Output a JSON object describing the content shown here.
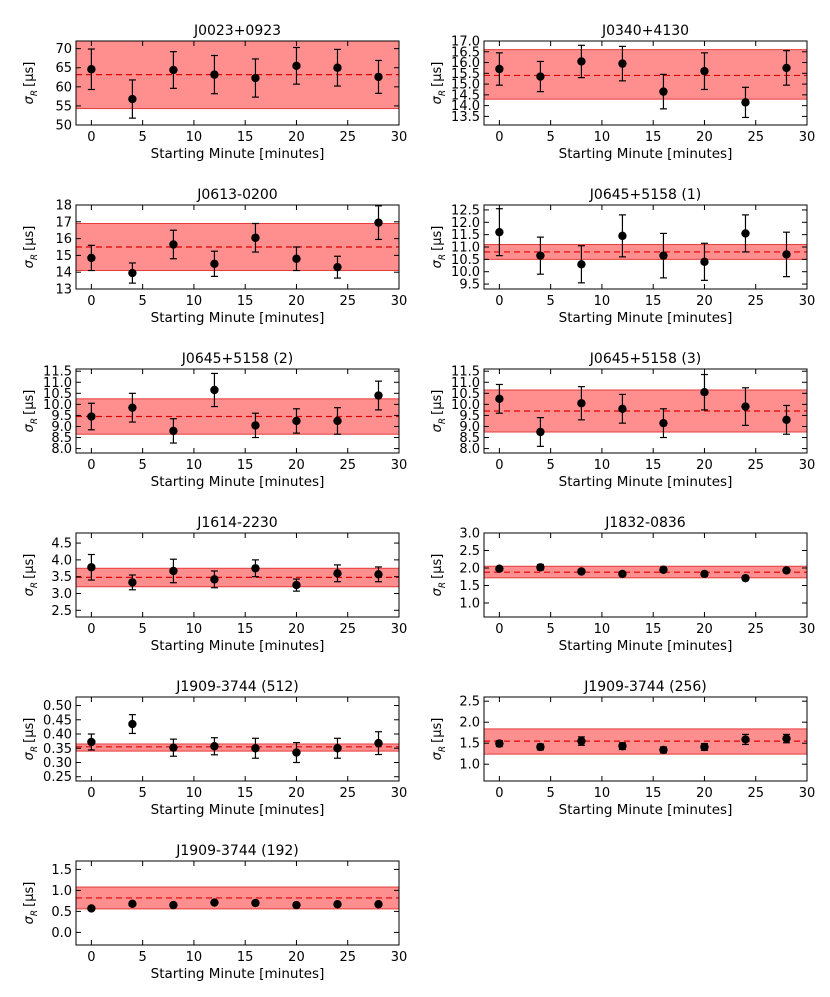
{
  "figure": {
    "xlabel": "Starting Minute [minutes]",
    "ylabel_symbol": "σ",
    "ylabel_subscript": "R",
    "ylabel_unit": "[μs]",
    "colors": {
      "band": "#ff7b7b",
      "band_edge": "#e53b3b",
      "mean_line": "#e00000",
      "points": "#000000",
      "axes": "#000000"
    }
  },
  "chart_data": [
    {
      "type": "scatter",
      "title": "J0023+0923",
      "xlim": [
        -1.5,
        30
      ],
      "ylim": [
        50,
        72
      ],
      "xticks": [
        0,
        5,
        10,
        15,
        20,
        25,
        30
      ],
      "yticks": [
        50,
        55,
        60,
        65,
        70
      ],
      "x": [
        0,
        4,
        8,
        12,
        16,
        20,
        24,
        28
      ],
      "y": [
        64.6,
        56.8,
        64.4,
        63.2,
        62.3,
        65.5,
        65.0,
        62.6
      ],
      "yerr": [
        5.3,
        5.0,
        4.8,
        5.0,
        5.0,
        4.8,
        4.8,
        4.3
      ],
      "mean": 63.2,
      "band": [
        54.3,
        72.0
      ]
    },
    {
      "type": "scatter",
      "title": "J0340+4130",
      "xlim": [
        -1.5,
        30
      ],
      "ylim": [
        13.1,
        17.0
      ],
      "xticks": [
        0,
        5,
        10,
        15,
        20,
        25,
        30
      ],
      "yticks": [
        13.5,
        14.0,
        14.5,
        15.0,
        15.5,
        16.0,
        16.5,
        17.0
      ],
      "ytick_labels": [
        "13.5",
        "14.0",
        "14.5",
        "15.0",
        "15.5",
        "16.0",
        "16.5",
        "17.0"
      ],
      "x": [
        0,
        4,
        8,
        12,
        16,
        20,
        24,
        28
      ],
      "y": [
        15.7,
        15.35,
        16.05,
        15.95,
        14.65,
        15.6,
        14.15,
        15.75
      ],
      "yerr": [
        0.75,
        0.7,
        0.75,
        0.8,
        0.8,
        0.85,
        0.7,
        0.8
      ],
      "mean": 15.4,
      "band": [
        14.3,
        16.6
      ]
    },
    {
      "type": "scatter",
      "title": "J0613-0200",
      "xlim": [
        -1.5,
        30
      ],
      "ylim": [
        13,
        18
      ],
      "xticks": [
        0,
        5,
        10,
        15,
        20,
        25,
        30
      ],
      "yticks": [
        13,
        14,
        15,
        16,
        17,
        18
      ],
      "x": [
        0,
        4,
        8,
        12,
        16,
        20,
        24,
        28
      ],
      "y": [
        14.85,
        13.95,
        15.65,
        14.5,
        16.05,
        14.8,
        14.3,
        16.95
      ],
      "yerr": [
        0.75,
        0.6,
        0.85,
        0.75,
        0.85,
        0.7,
        0.65,
        1.0
      ],
      "mean": 15.5,
      "band": [
        14.1,
        16.9
      ]
    },
    {
      "type": "scatter",
      "title": "J0645+5158 (1)",
      "xlim": [
        -1.5,
        30
      ],
      "ylim": [
        9.3,
        12.7
      ],
      "xticks": [
        0,
        5,
        10,
        15,
        20,
        25,
        30
      ],
      "yticks": [
        9.5,
        10.0,
        10.5,
        11.0,
        11.5,
        12.0,
        12.5
      ],
      "ytick_labels": [
        "9.5",
        "10.0",
        "10.5",
        "11.0",
        "11.5",
        "12.0",
        "12.5"
      ],
      "x": [
        0,
        4,
        8,
        12,
        16,
        20,
        24,
        28
      ],
      "y": [
        11.6,
        10.65,
        10.3,
        11.45,
        10.65,
        10.4,
        11.55,
        10.7
      ],
      "yerr": [
        0.95,
        0.75,
        0.75,
        0.85,
        0.9,
        0.75,
        0.75,
        0.9
      ],
      "mean": 10.8,
      "band": [
        10.5,
        11.1
      ]
    },
    {
      "type": "scatter",
      "title": "J0645+5158 (2)",
      "xlim": [
        -1.5,
        30
      ],
      "ylim": [
        7.8,
        11.6
      ],
      "xticks": [
        0,
        5,
        10,
        15,
        20,
        25,
        30
      ],
      "yticks": [
        8.0,
        8.5,
        9.0,
        9.5,
        10.0,
        10.5,
        11.0,
        11.5
      ],
      "ytick_labels": [
        "8.0",
        "8.5",
        "9.0",
        "9.5",
        "10.0",
        "10.5",
        "11.0",
        "11.5"
      ],
      "x": [
        0,
        4,
        8,
        12,
        16,
        20,
        24,
        28
      ],
      "y": [
        9.45,
        9.85,
        8.8,
        10.65,
        9.05,
        9.25,
        9.25,
        10.4
      ],
      "yerr": [
        0.6,
        0.65,
        0.55,
        0.75,
        0.55,
        0.55,
        0.6,
        0.65
      ],
      "mean": 9.45,
      "band": [
        8.65,
        10.25
      ]
    },
    {
      "type": "scatter",
      "title": "J0645+5158 (3)",
      "xlim": [
        -1.5,
        30
      ],
      "ylim": [
        7.8,
        11.6
      ],
      "xticks": [
        0,
        5,
        10,
        15,
        20,
        25,
        30
      ],
      "yticks": [
        8.0,
        8.5,
        9.0,
        9.5,
        10.0,
        10.5,
        11.0,
        11.5
      ],
      "ytick_labels": [
        "8.0",
        "8.5",
        "9.0",
        "9.5",
        "10.0",
        "10.5",
        "11.0",
        "11.5"
      ],
      "x": [
        0,
        4,
        8,
        12,
        16,
        20,
        24,
        28
      ],
      "y": [
        10.25,
        8.75,
        10.05,
        9.8,
        9.15,
        10.55,
        9.9,
        9.3
      ],
      "yerr": [
        0.65,
        0.65,
        0.75,
        0.65,
        0.65,
        0.8,
        0.85,
        0.65
      ],
      "mean": 9.7,
      "band": [
        8.75,
        10.65
      ]
    },
    {
      "type": "scatter",
      "title": "J1614-2230",
      "xlim": [
        -1.5,
        30
      ],
      "ylim": [
        2.3,
        4.8
      ],
      "xticks": [
        0,
        5,
        10,
        15,
        20,
        25,
        30
      ],
      "yticks": [
        2.5,
        3.0,
        3.5,
        4.0,
        4.5
      ],
      "ytick_labels": [
        "2.5",
        "3.0",
        "3.5",
        "4.0",
        "4.5"
      ],
      "x": [
        0,
        4,
        8,
        12,
        16,
        20,
        24,
        28
      ],
      "y": [
        3.78,
        3.33,
        3.67,
        3.42,
        3.75,
        3.25,
        3.6,
        3.57
      ],
      "yerr": [
        0.38,
        0.22,
        0.35,
        0.25,
        0.25,
        0.18,
        0.25,
        0.22
      ],
      "mean": 3.48,
      "band": [
        3.2,
        3.75
      ]
    },
    {
      "type": "scatter",
      "title": "J1832-0836",
      "xlim": [
        -1.5,
        30
      ],
      "ylim": [
        0.6,
        3.0
      ],
      "xticks": [
        0,
        5,
        10,
        15,
        20,
        25,
        30
      ],
      "yticks": [
        1.0,
        1.5,
        2.0,
        2.5,
        3.0
      ],
      "ytick_labels": [
        "1.0",
        "1.5",
        "2.0",
        "2.5",
        "3.0"
      ],
      "x": [
        0,
        4,
        8,
        12,
        16,
        20,
        24,
        28
      ],
      "y": [
        1.98,
        2.02,
        1.9,
        1.83,
        1.95,
        1.83,
        1.71,
        1.93
      ],
      "yerr": [
        0.05,
        0.08,
        0.06,
        0.06,
        0.06,
        0.06,
        0.05,
        0.06
      ],
      "mean": 1.88,
      "band": [
        1.72,
        2.05
      ]
    },
    {
      "type": "scatter",
      "title": "J1909-3744 (512)",
      "xlim": [
        -1.5,
        30
      ],
      "ylim": [
        0.235,
        0.53
      ],
      "xticks": [
        0,
        5,
        10,
        15,
        20,
        25,
        30
      ],
      "yticks": [
        0.25,
        0.3,
        0.35,
        0.4,
        0.45,
        0.5
      ],
      "ytick_labels": [
        "0.25",
        "0.30",
        "0.35",
        "0.40",
        "0.45",
        "0.50"
      ],
      "x": [
        0,
        4,
        8,
        12,
        16,
        20,
        24,
        28
      ],
      "y": [
        0.372,
        0.435,
        0.352,
        0.357,
        0.35,
        0.335,
        0.35,
        0.368
      ],
      "yerr": [
        0.028,
        0.033,
        0.03,
        0.03,
        0.035,
        0.035,
        0.035,
        0.04
      ],
      "mean": 0.355,
      "band": [
        0.34,
        0.365
      ]
    },
    {
      "type": "scatter",
      "title": "J1909-3744 (256)",
      "xlim": [
        -1.5,
        30
      ],
      "ylim": [
        0.6,
        2.6
      ],
      "xticks": [
        0,
        5,
        10,
        15,
        20,
        25,
        30
      ],
      "yticks": [
        1.0,
        1.5,
        2.0,
        2.5
      ],
      "ytick_labels": [
        "1.0",
        "1.5",
        "2.0",
        "2.5"
      ],
      "x": [
        0,
        4,
        8,
        12,
        16,
        20,
        24,
        28
      ],
      "y": [
        1.49,
        1.41,
        1.55,
        1.43,
        1.34,
        1.41,
        1.59,
        1.61
      ],
      "yerr": [
        0.07,
        0.07,
        0.1,
        0.08,
        0.07,
        0.08,
        0.12,
        0.1
      ],
      "mean": 1.55,
      "band": [
        1.24,
        1.84
      ]
    },
    {
      "type": "scatter",
      "title": "J1909-3744 (192)",
      "xlim": [
        -1.5,
        30
      ],
      "ylim": [
        -0.3,
        1.7
      ],
      "xticks": [
        0,
        5,
        10,
        15,
        20,
        25,
        30
      ],
      "yticks": [
        0.0,
        0.5,
        1.0,
        1.5
      ],
      "ytick_labels": [
        "0.0",
        "0.5",
        "1.0",
        "1.5"
      ],
      "x": [
        0,
        4,
        8,
        12,
        16,
        20,
        24,
        28
      ],
      "y": [
        0.57,
        0.68,
        0.65,
        0.71,
        0.7,
        0.65,
        0.67,
        0.67
      ],
      "yerr": [
        0.03,
        0.03,
        0.03,
        0.03,
        0.03,
        0.03,
        0.03,
        0.03
      ],
      "mean": 0.82,
      "band": [
        0.56,
        1.08
      ]
    }
  ]
}
